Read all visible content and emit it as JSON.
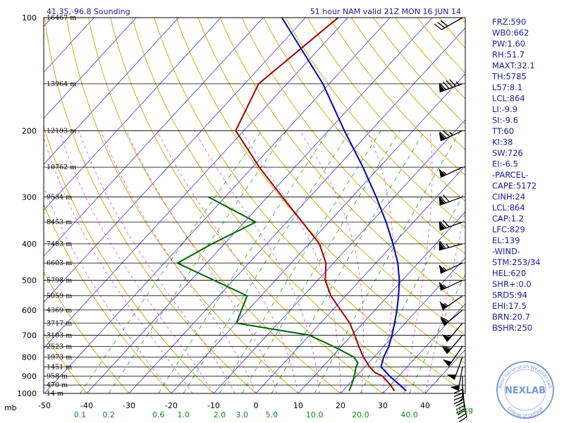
{
  "header": {
    "location": "41.35,-96.8 Sounding",
    "valid": "51 hour NAM valid 21Z MON 16 JUN 14"
  },
  "units": {
    "pressure": "mb",
    "mixing_ratio": "g/kg"
  },
  "indices": [
    "FRZ:590",
    "WB0:662",
    "PW:1.60",
    "RH:51.7",
    "MAXT:32.1",
    "TH:5785",
    "L57:8.1",
    "LCL:864",
    "LI:-9.9",
    "SI:-9.6",
    "TT:60",
    "KI:38",
    "SW:726",
    "EI:-6.5",
    "-PARCEL-",
    "CAPE:5172",
    "CINH:24",
    "LCL:864",
    "CAP:1.2",
    "LFC:829",
    "EL:139",
    "-WIND-",
    "STM:253/34",
    "HEL:620",
    "SHR+:0.0",
    "SRDS:94",
    "EHI:17.5",
    "BRN:20.7",
    "BSHR:250"
  ],
  "logo": {
    "name": "NEXLAB",
    "ring_top": "Next Generation Weather Lab",
    "ring_bottom": "College of DuPage"
  },
  "colors": {
    "temperature": "#a00000",
    "dewpoint": "#006400",
    "parcel": "#0000b4",
    "isotherm": "#3a3ad8",
    "dry_adiabat": "#c8a800",
    "moist_adiabat": "#e060e0",
    "mixing_ratio": "#22a022",
    "text": "#1c1c9c"
  },
  "chart_data": {
    "type": "skew-t",
    "title": "51 hour NAM valid 21Z MON 16 JUN 14",
    "xlabel": "",
    "ylabel": "mb",
    "temperature_ticks": [
      -50,
      -40,
      -30,
      -20,
      -10,
      0,
      10,
      20,
      30,
      40
    ],
    "pressure_ticks": [
      100,
      200,
      300,
      400,
      500,
      600,
      700,
      800,
      900,
      1000
    ],
    "mixing_ratio_ticks": [
      "0.1",
      "0.2",
      "0.6",
      "1.0",
      "2.0",
      "3.0",
      "5.0",
      "10.0",
      "20.0",
      "40.0"
    ],
    "heights": [
      {
        "p": 100,
        "label": "16467 m"
      },
      {
        "p": 150,
        "label": "13964 m"
      },
      {
        "p": 200,
        "label": "12193 m"
      },
      {
        "p": 250,
        "label": "10762 m"
      },
      {
        "p": 300,
        "label": "9534 m"
      },
      {
        "p": 350,
        "label": "8453 m"
      },
      {
        "p": 400,
        "label": "7483 m"
      },
      {
        "p": 450,
        "label": "6603 m"
      },
      {
        "p": 500,
        "label": "5798 m"
      },
      {
        "p": 550,
        "label": "5059 m"
      },
      {
        "p": 600,
        "label": "4369 m"
      },
      {
        "p": 650,
        "label": "3717 m"
      },
      {
        "p": 700,
        "label": "3103 m"
      },
      {
        "p": 750,
        "label": "2523 m"
      },
      {
        "p": 800,
        "label": "1973 m"
      },
      {
        "p": 850,
        "label": "1451 m"
      },
      {
        "p": 900,
        "label": "958 m"
      },
      {
        "p": 950,
        "label": "470 m"
      },
      {
        "p": 1000,
        "label": "14 m"
      }
    ],
    "temperature": [
      {
        "p": 100,
        "t": -62.3
      },
      {
        "p": 150,
        "t": -66.7
      },
      {
        "p": 200,
        "t": -61.9
      },
      {
        "p": 250,
        "t": -48.4
      },
      {
        "p": 300,
        "t": -36.5
      },
      {
        "p": 350,
        "t": -26.3
      },
      {
        "p": 400,
        "t": -17.5
      },
      {
        "p": 450,
        "t": -11.8
      },
      {
        "p": 500,
        "t": -8.2
      },
      {
        "p": 550,
        "t": -3.5
      },
      {
        "p": 600,
        "t": 1.9
      },
      {
        "p": 650,
        "t": 6.9
      },
      {
        "p": 700,
        "t": 10.7
      },
      {
        "p": 750,
        "t": 14.1
      },
      {
        "p": 800,
        "t": 17.5
      },
      {
        "p": 850,
        "t": 21.1
      },
      {
        "p": 880,
        "t": 23.6
      },
      {
        "p": 900,
        "t": 26.2
      },
      {
        "p": 950,
        "t": 30.0
      },
      {
        "p": 985,
        "t": 32.2
      }
    ],
    "dewpoint": [
      {
        "p": 300,
        "t": -54.0
      },
      {
        "p": 350,
        "t": -37.3
      },
      {
        "p": 400,
        "t": -42.9
      },
      {
        "p": 450,
        "t": -46.9
      },
      {
        "p": 550,
        "t": -23.3
      },
      {
        "p": 650,
        "t": -19.9
      },
      {
        "p": 700,
        "t": -0.1
      },
      {
        "p": 750,
        "t": 8.1
      },
      {
        "p": 800,
        "t": 15.2
      },
      {
        "p": 830,
        "t": 17.5
      },
      {
        "p": 850,
        "t": 17.9
      },
      {
        "p": 900,
        "t": 19.5
      },
      {
        "p": 950,
        "t": 20.8
      },
      {
        "p": 985,
        "t": 21.5
      }
    ],
    "parcel": [
      {
        "p": 100,
        "t": -75.6
      },
      {
        "p": 150,
        "t": -51.5
      },
      {
        "p": 200,
        "t": -36.2
      },
      {
        "p": 250,
        "t": -23.9
      },
      {
        "p": 300,
        "t": -14.3
      },
      {
        "p": 350,
        "t": -6.5
      },
      {
        "p": 400,
        "t": -0.1
      },
      {
        "p": 450,
        "t": 5.2
      },
      {
        "p": 500,
        "t": 9.3
      },
      {
        "p": 550,
        "t": 12.5
      },
      {
        "p": 600,
        "t": 15.2
      },
      {
        "p": 650,
        "t": 17.5
      },
      {
        "p": 700,
        "t": 19.5
      },
      {
        "p": 750,
        "t": 21.2
      },
      {
        "p": 800,
        "t": 22.3
      },
      {
        "p": 850,
        "t": 23.8
      },
      {
        "p": 900,
        "t": 27.9
      },
      {
        "p": 950,
        "t": 32.2
      },
      {
        "p": 985,
        "t": 35.0
      }
    ],
    "wind_barbs": [
      {
        "p": 100,
        "direction": 240,
        "speed_kt": 30
      },
      {
        "p": 150,
        "direction": 250,
        "speed_kt": 95
      },
      {
        "p": 200,
        "direction": 245,
        "speed_kt": 75
      },
      {
        "p": 250,
        "direction": 245,
        "speed_kt": 55
      },
      {
        "p": 300,
        "direction": 250,
        "speed_kt": 70
      },
      {
        "p": 350,
        "direction": 250,
        "speed_kt": 70
      },
      {
        "p": 400,
        "direction": 255,
        "speed_kt": 65
      },
      {
        "p": 450,
        "direction": 245,
        "speed_kt": 55
      },
      {
        "p": 500,
        "direction": 245,
        "speed_kt": 55
      },
      {
        "p": 550,
        "direction": 235,
        "speed_kt": 55
      },
      {
        "p": 600,
        "direction": 230,
        "speed_kt": 60
      },
      {
        "p": 650,
        "direction": 220,
        "speed_kt": 55
      },
      {
        "p": 700,
        "direction": 220,
        "speed_kt": 60
      },
      {
        "p": 750,
        "direction": 215,
        "speed_kt": 50
      },
      {
        "p": 800,
        "direction": 200,
        "speed_kt": 50
      },
      {
        "p": 850,
        "direction": 190,
        "speed_kt": 50
      },
      {
        "p": 900,
        "direction": 180,
        "speed_kt": 40
      },
      {
        "p": 950,
        "direction": 175,
        "speed_kt": 35
      },
      {
        "p": 1000,
        "direction": 170,
        "speed_kt": 30
      }
    ]
  }
}
